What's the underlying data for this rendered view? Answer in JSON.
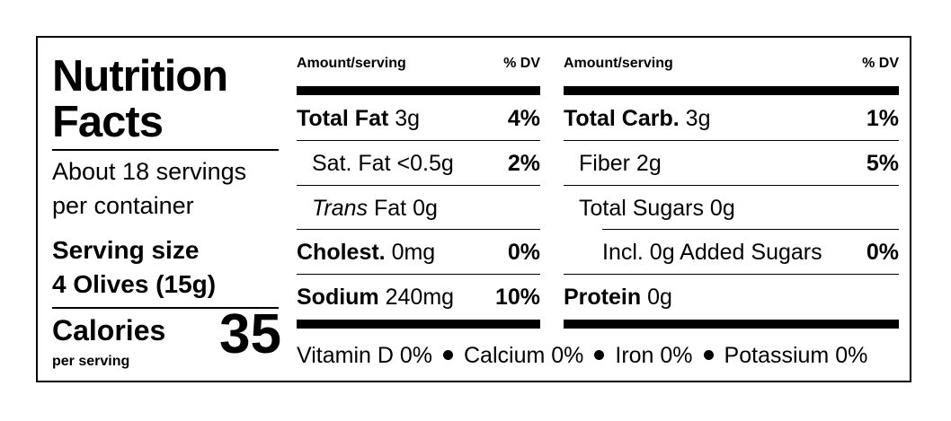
{
  "header": {
    "title_line1": "Nutrition",
    "title_line2": "Facts"
  },
  "servings": {
    "line1": "About 18 servings",
    "line2": "per container",
    "size_label": "Serving size",
    "size_value": "4 Olives (15g)"
  },
  "calories": {
    "label": "Calories",
    "sub": "per serving",
    "value": "35"
  },
  "left_table": {
    "header_amount": "Amount/serving",
    "header_dv": "% DV",
    "rows": [
      {
        "name": "Total Fat",
        "amount": " 3g",
        "dv": "4%"
      },
      {
        "name": "Sat. Fat",
        "amount": " <0.5g",
        "dv": "2%"
      },
      {
        "name": "Trans",
        "amount": " Fat 0g",
        "dv": ""
      },
      {
        "name": "Cholest.",
        "amount": " 0mg",
        "dv": "0%"
      },
      {
        "name": "Sodium",
        "amount": " 240mg",
        "dv": "10%"
      }
    ]
  },
  "right_table": {
    "header_amount": "Amount/serving",
    "header_dv": "% DV",
    "rows": [
      {
        "name": "Total Carb.",
        "amount": " 3g",
        "dv": "1%"
      },
      {
        "name": "Fiber",
        "amount": " 2g",
        "dv": "5%"
      },
      {
        "name": "Total Sugars",
        "amount": " 0g",
        "dv": ""
      },
      {
        "name": "Incl. 0g Added Sugars",
        "amount": "",
        "dv": "0%"
      },
      {
        "name": "Protein",
        "amount": " 0g",
        "dv": ""
      }
    ]
  },
  "vitamins": {
    "vitamin_d": "Vitamin D 0%",
    "calcium": "Calcium 0%",
    "iron": "Iron 0%",
    "potassium": "Potassium 0%"
  }
}
